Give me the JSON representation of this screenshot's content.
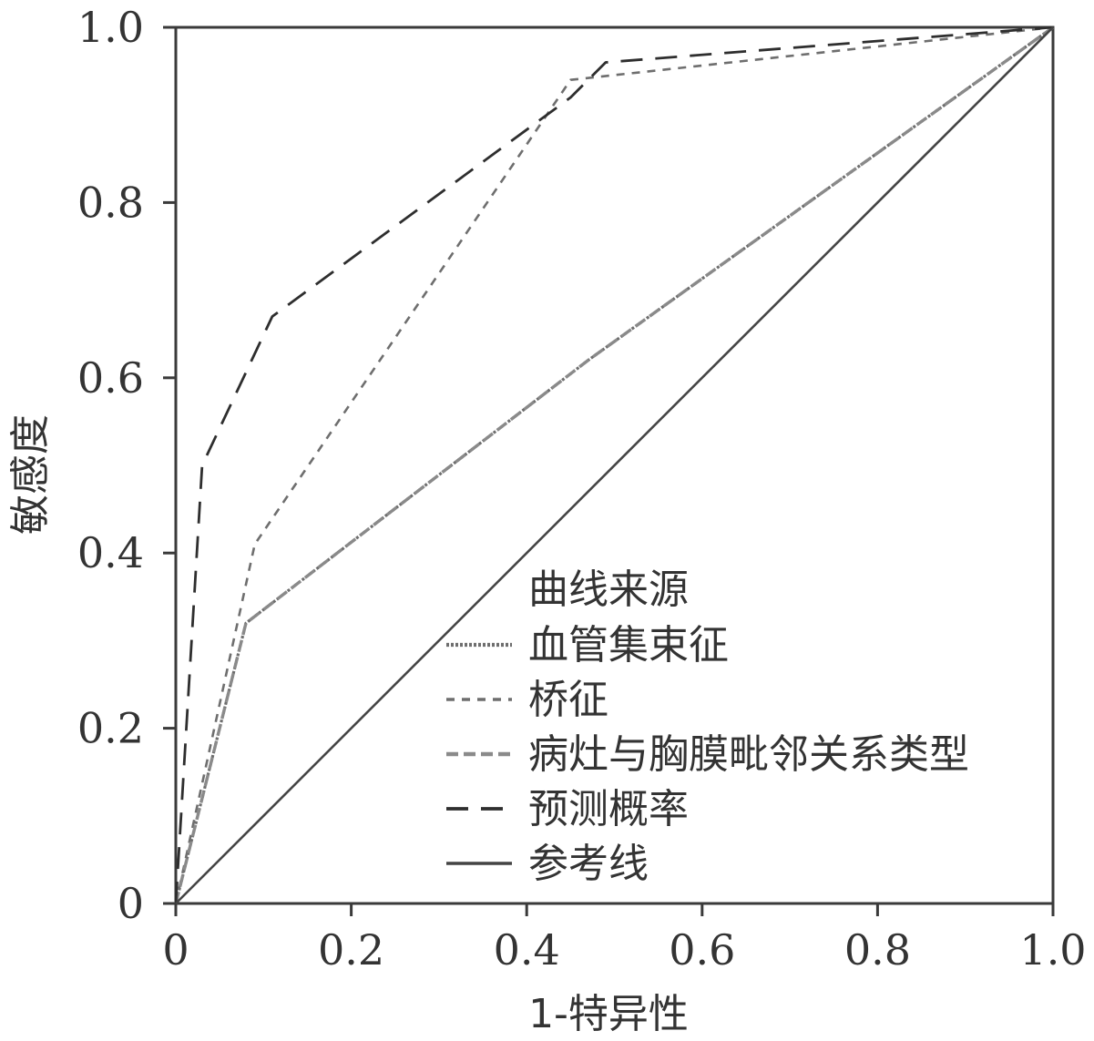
{
  "chart_data": {
    "type": "line",
    "title": "",
    "xlabel": "1-特异性",
    "ylabel": "敏感度",
    "xlim": [
      0,
      1
    ],
    "ylim": [
      0,
      1
    ],
    "x_ticks": [
      "0",
      "0.2",
      "0.4",
      "0.6",
      "0.8",
      "1.0"
    ],
    "y_ticks": [
      "0",
      "0.2",
      "0.4",
      "0.6",
      "0.8",
      "1.0"
    ],
    "grid": false,
    "legend_title": "曲线来源",
    "legend_position": "bottom-right",
    "series": [
      {
        "name": "血管集束征",
        "style": "dotted",
        "color": "#6e6e6e",
        "points": [
          [
            0,
            0
          ],
          [
            0.08,
            0.32
          ],
          [
            0.47,
            0.62
          ],
          [
            1.0,
            1.0
          ]
        ]
      },
      {
        "name": "桥征",
        "style": "short-dash",
        "color": "#6e6e6e",
        "points": [
          [
            0,
            0
          ],
          [
            0.09,
            0.41
          ],
          [
            0.45,
            0.94
          ],
          [
            1.0,
            1.0
          ]
        ]
      },
      {
        "name": "病灶与胸膜毗邻关系类型",
        "style": "medium-dash",
        "color": "#8a8a8a",
        "points": [
          [
            0,
            0
          ],
          [
            0.08,
            0.32
          ],
          [
            0.47,
            0.62
          ],
          [
            1.0,
            1.0
          ]
        ]
      },
      {
        "name": "预测概率",
        "style": "long-dash",
        "color": "#2e2e2e",
        "points": [
          [
            0,
            0
          ],
          [
            0.03,
            0.5
          ],
          [
            0.11,
            0.67
          ],
          [
            0.45,
            0.92
          ],
          [
            0.49,
            0.96
          ],
          [
            1.0,
            1.0
          ]
        ]
      },
      {
        "name": "参考线",
        "style": "solid",
        "color": "#444444",
        "points": [
          [
            0,
            0
          ],
          [
            1.0,
            1.0
          ]
        ]
      }
    ]
  }
}
